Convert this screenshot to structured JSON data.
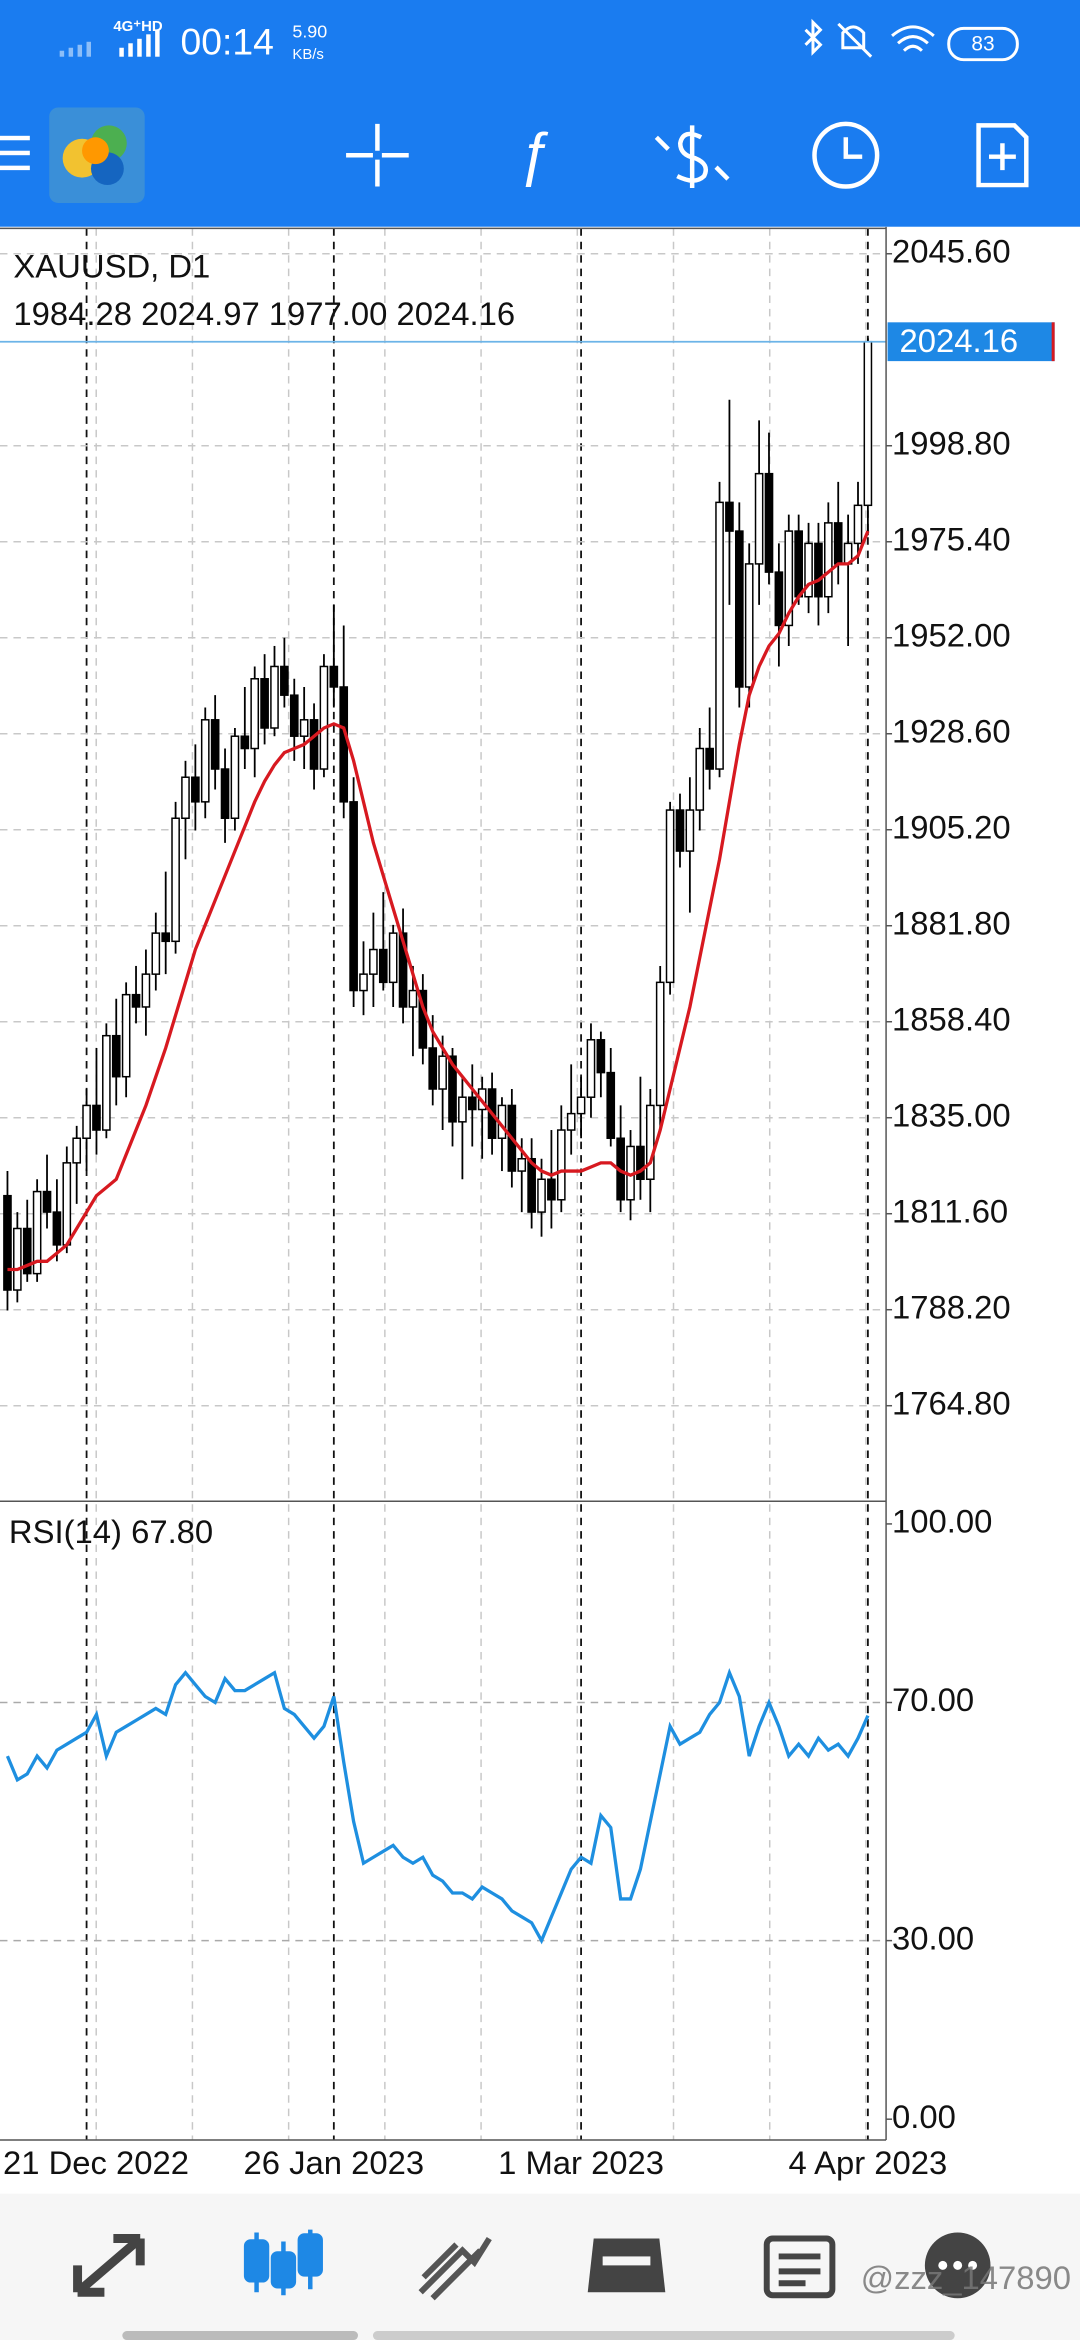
{
  "status_bar": {
    "network": "4G⁺HD",
    "time": "00:14",
    "speed": "5.90",
    "speed_unit": "KB/s",
    "battery": "83"
  },
  "chart_data": [
    {
      "type": "candlestick",
      "title": "XAUUSD, D1",
      "ohlc_text": "1984.28 2024.97 1977.00 2024.16",
      "categories": [
        null,
        null,
        null,
        null,
        null,
        null,
        null,
        null,
        "21 Dec 2022",
        null,
        null,
        null,
        null,
        null,
        null,
        null,
        null,
        null,
        null,
        null,
        null,
        null,
        null,
        null,
        null,
        null,
        null,
        null,
        null,
        null,
        null,
        null,
        null,
        "26 Jan 2023",
        null,
        null,
        null,
        null,
        null,
        null,
        null,
        null,
        null,
        null,
        null,
        null,
        null,
        null,
        null,
        null,
        null,
        null,
        null,
        null,
        null,
        null,
        null,
        null,
        "1 Mar 2023",
        null,
        null,
        null,
        null,
        null,
        null,
        null,
        null,
        null,
        null,
        null,
        null,
        null,
        null,
        null,
        null,
        null,
        null,
        null,
        null,
        null,
        null,
        null,
        null,
        null,
        null,
        null,
        null,
        "4 Apr 2023"
      ],
      "open": [
        1816,
        1793,
        1808,
        1797,
        1817,
        1812,
        1804,
        1824,
        1830,
        1838,
        1832,
        1855,
        1845,
        1865,
        1862,
        1870,
        1880,
        1878,
        1908,
        1918,
        1912,
        1932,
        1920,
        1908,
        1928,
        1925,
        1942,
        1930,
        1945,
        1938,
        1928,
        1932,
        1920,
        1945,
        1940,
        1912,
        1866,
        1870,
        1876,
        1868,
        1880,
        1862,
        1866,
        1852,
        1842,
        1850,
        1834,
        1840,
        1837,
        1842,
        1830,
        1838,
        1822,
        1825,
        1812,
        1820,
        1815,
        1832,
        1836,
        1840,
        1854,
        1846,
        1830,
        1815,
        1828,
        1820,
        1838,
        1868,
        1910,
        1900,
        1910,
        1925,
        1920,
        1985,
        1978,
        1940,
        1970,
        1992,
        1968,
        1955,
        1978,
        1962,
        1975,
        1962,
        1980,
        1970,
        1975,
        1984.28
      ],
      "high": [
        1822,
        1812,
        1815,
        1820,
        1826,
        1820,
        1828,
        1833,
        1842,
        1852,
        1858,
        1864,
        1868,
        1872,
        1876,
        1885,
        1895,
        1912,
        1922,
        1926,
        1935,
        1938,
        1925,
        1930,
        1940,
        1945,
        1948,
        1950,
        1952,
        1942,
        1940,
        1936,
        1948,
        1960,
        1955,
        1918,
        1878,
        1885,
        1890,
        1882,
        1886,
        1872,
        1870,
        1860,
        1855,
        1852,
        1845,
        1848,
        1845,
        1846,
        1840,
        1842,
        1830,
        1830,
        1825,
        1832,
        1838,
        1848,
        1845,
        1858,
        1856,
        1852,
        1838,
        1832,
        1845,
        1842,
        1872,
        1912,
        1914,
        1918,
        1930,
        1935,
        1990,
        2010,
        1985,
        1975,
        2005,
        2002,
        1975,
        1982,
        1982,
        1980,
        1980,
        1985,
        1990,
        1982,
        1990,
        2024.97
      ],
      "low": [
        1788,
        1790,
        1795,
        1795,
        1808,
        1800,
        1802,
        1814,
        1822,
        1826,
        1830,
        1838,
        1840,
        1858,
        1855,
        1866,
        1870,
        1875,
        1898,
        1905,
        1908,
        1915,
        1902,
        1905,
        1920,
        1918,
        1926,
        1928,
        1935,
        1922,
        1920,
        1915,
        1918,
        1935,
        1908,
        1862,
        1860,
        1862,
        1866,
        1862,
        1858,
        1850,
        1848,
        1838,
        1832,
        1828,
        1820,
        1828,
        1825,
        1826,
        1822,
        1818,
        1812,
        1808,
        1806,
        1808,
        1812,
        1826,
        1830,
        1835,
        1840,
        1828,
        1812,
        1810,
        1815,
        1812,
        1832,
        1865,
        1896,
        1885,
        1905,
        1915,
        1918,
        1960,
        1935,
        1935,
        1960,
        1965,
        1945,
        1950,
        1960,
        1958,
        1955,
        1958,
        1965,
        1950,
        1970,
        1977
      ],
      "close": [
        1793,
        1808,
        1797,
        1817,
        1812,
        1804,
        1824,
        1830,
        1838,
        1832,
        1855,
        1845,
        1865,
        1862,
        1870,
        1880,
        1878,
        1908,
        1918,
        1912,
        1932,
        1920,
        1908,
        1928,
        1925,
        1942,
        1930,
        1945,
        1938,
        1928,
        1932,
        1920,
        1945,
        1940,
        1912,
        1866,
        1870,
        1876,
        1868,
        1880,
        1862,
        1866,
        1852,
        1842,
        1850,
        1834,
        1840,
        1837,
        1842,
        1830,
        1838,
        1822,
        1825,
        1812,
        1820,
        1815,
        1832,
        1836,
        1840,
        1854,
        1846,
        1830,
        1815,
        1828,
        1820,
        1838,
        1868,
        1910,
        1900,
        1910,
        1925,
        1920,
        1985,
        1978,
        1940,
        1970,
        1992,
        1968,
        1955,
        1978,
        1962,
        1975,
        1962,
        1980,
        1970,
        1975,
        1984.28,
        2024.16
      ],
      "up_color": "#ffffff",
      "down_color": "#000000",
      "ma": {
        "color": "#d71920",
        "values": [
          1798,
          1798,
          1799,
          1800,
          1800,
          1802,
          1804,
          1808,
          1812,
          1816,
          1818,
          1820,
          1826,
          1832,
          1838,
          1845,
          1852,
          1860,
          1868,
          1876,
          1882,
          1888,
          1894,
          1900,
          1906,
          1912,
          1917,
          1921,
          1924,
          1925,
          1926,
          1928,
          1930,
          1931,
          1930,
          1922,
          1912,
          1902,
          1894,
          1886,
          1878,
          1870,
          1862,
          1856,
          1852,
          1848,
          1845,
          1842,
          1839,
          1836,
          1833,
          1830,
          1827,
          1824,
          1822,
          1821,
          1822,
          1822,
          1822,
          1823,
          1824,
          1824,
          1822,
          1821,
          1822,
          1824,
          1832,
          1842,
          1852,
          1862,
          1874,
          1886,
          1898,
          1912,
          1926,
          1938,
          1945,
          1950,
          1953,
          1958,
          1962,
          1965,
          1966,
          1968,
          1970,
          1970,
          1972,
          1978
        ]
      },
      "current_price": {
        "value": 2024.16,
        "label": "2024.16",
        "color": "#1e88e5"
      },
      "ylim": [
        1741.5,
        2051.8
      ],
      "yticks": [
        {
          "value": 2045.6,
          "label": "2045.60"
        },
        {
          "value": 1998.8,
          "label": "1998.80"
        },
        {
          "value": 1975.4,
          "label": "1975.40"
        },
        {
          "value": 1952,
          "label": "1952.00"
        },
        {
          "value": 1928.6,
          "label": "1928.60"
        },
        {
          "value": 1905.2,
          "label": "1905.20"
        },
        {
          "value": 1881.8,
          "label": "1881.80"
        },
        {
          "value": 1858.4,
          "label": "1858.40"
        },
        {
          "value": 1835,
          "label": "1835.00"
        },
        {
          "value": 1811.6,
          "label": "1811.60"
        },
        {
          "value": 1788.2,
          "label": "1788.20"
        },
        {
          "value": 1764.8,
          "label": "1764.80"
        }
      ],
      "grid": true
    },
    {
      "type": "line",
      "title": "RSI(14) 67.80",
      "series": [
        {
          "color": "#1e8fe0",
          "values": [
            61,
            57,
            58,
            61,
            59,
            62,
            63,
            64,
            65,
            68,
            61,
            65,
            66,
            67,
            68,
            69,
            68,
            73,
            75,
            73,
            71,
            70,
            74,
            72,
            72,
            73,
            74,
            75,
            69,
            68,
            66,
            64,
            66,
            71,
            60,
            50,
            43,
            44,
            45,
            46,
            44,
            43,
            44,
            41,
            40,
            38,
            38,
            37,
            39,
            38,
            37,
            35,
            34,
            33,
            30,
            34,
            38,
            42,
            44,
            43,
            51,
            49,
            37,
            37,
            42,
            50,
            58,
            66,
            63,
            64,
            65,
            68,
            70,
            75,
            71,
            61,
            66,
            70,
            66,
            61,
            63,
            61,
            64,
            62,
            63,
            61,
            64,
            67.8
          ]
        }
      ],
      "ylim": [
        -3.5,
        103.8
      ],
      "yticks": [
        {
          "value": 100,
          "label": "100.00"
        },
        {
          "value": 70,
          "label": "70.00"
        },
        {
          "value": 30,
          "label": "30.00"
        },
        {
          "value": 0,
          "label": "0.00"
        }
      ],
      "levels": [
        70,
        30
      ]
    }
  ],
  "watermark": "@zzz_147890"
}
